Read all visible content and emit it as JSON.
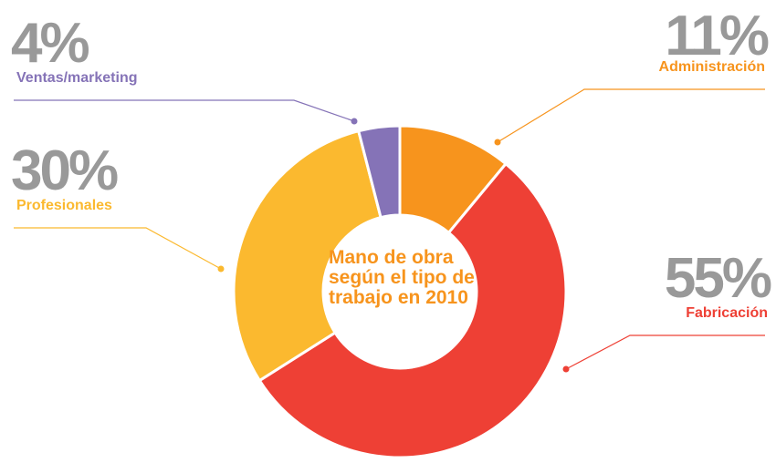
{
  "chart_data": {
    "type": "donut",
    "title": "Mano de obra según el tipo de trabajo en 2010",
    "categories": [
      "Administración",
      "Fabricación",
      "Profesionales",
      "Ventas/marketing"
    ],
    "values": [
      11,
      55,
      30,
      4
    ],
    "value_labels": [
      "11%",
      "55%",
      "30%",
      "4%"
    ],
    "colors": [
      "#f7941d",
      "#ee4035",
      "#fbb92f",
      "#8573b7"
    ]
  }
}
